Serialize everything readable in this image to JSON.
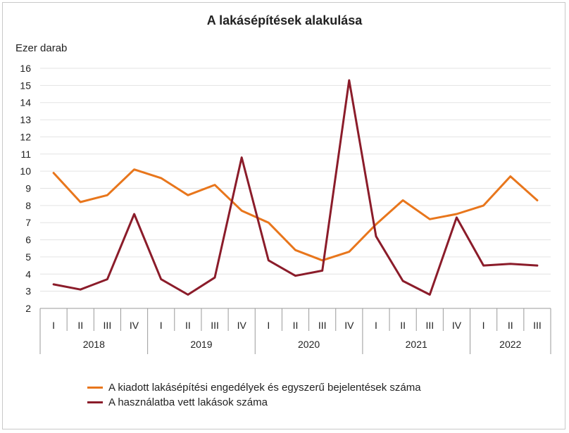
{
  "chart_data": {
    "type": "line",
    "title": "A lakásépítések alakulása",
    "ylabel": "Ezer darab",
    "ylim": [
      2,
      16
    ],
    "yticks": [
      2,
      3,
      4,
      5,
      6,
      7,
      8,
      9,
      10,
      11,
      12,
      13,
      14,
      15,
      16
    ],
    "x": [
      "I",
      "II",
      "III",
      "IV",
      "I",
      "II",
      "III",
      "IV",
      "I",
      "II",
      "III",
      "IV",
      "I",
      "II",
      "III",
      "IV",
      "I",
      "II",
      "III"
    ],
    "years": [
      {
        "label": "2018",
        "count": 4
      },
      {
        "label": "2019",
        "count": 4
      },
      {
        "label": "2020",
        "count": 4
      },
      {
        "label": "2021",
        "count": 4
      },
      {
        "label": "2022",
        "count": 3
      }
    ],
    "series": [
      {
        "name": "A kiadott lakásépítési engedélyek és egyszerű bejelentések száma",
        "color": "#e8761c",
        "values": [
          9.9,
          8.2,
          8.6,
          10.1,
          9.6,
          8.6,
          9.2,
          7.7,
          7.0,
          5.4,
          4.8,
          5.3,
          6.9,
          8.3,
          7.2,
          7.5,
          8.0,
          9.7,
          8.3
        ]
      },
      {
        "name": "A használatba vett lakások száma",
        "color": "#8b1c2a",
        "values": [
          3.4,
          3.1,
          3.7,
          7.5,
          3.7,
          2.8,
          3.8,
          10.8,
          4.8,
          3.9,
          4.2,
          15.3,
          6.2,
          3.6,
          2.8,
          7.3,
          4.5,
          4.6,
          4.5
        ]
      }
    ]
  }
}
